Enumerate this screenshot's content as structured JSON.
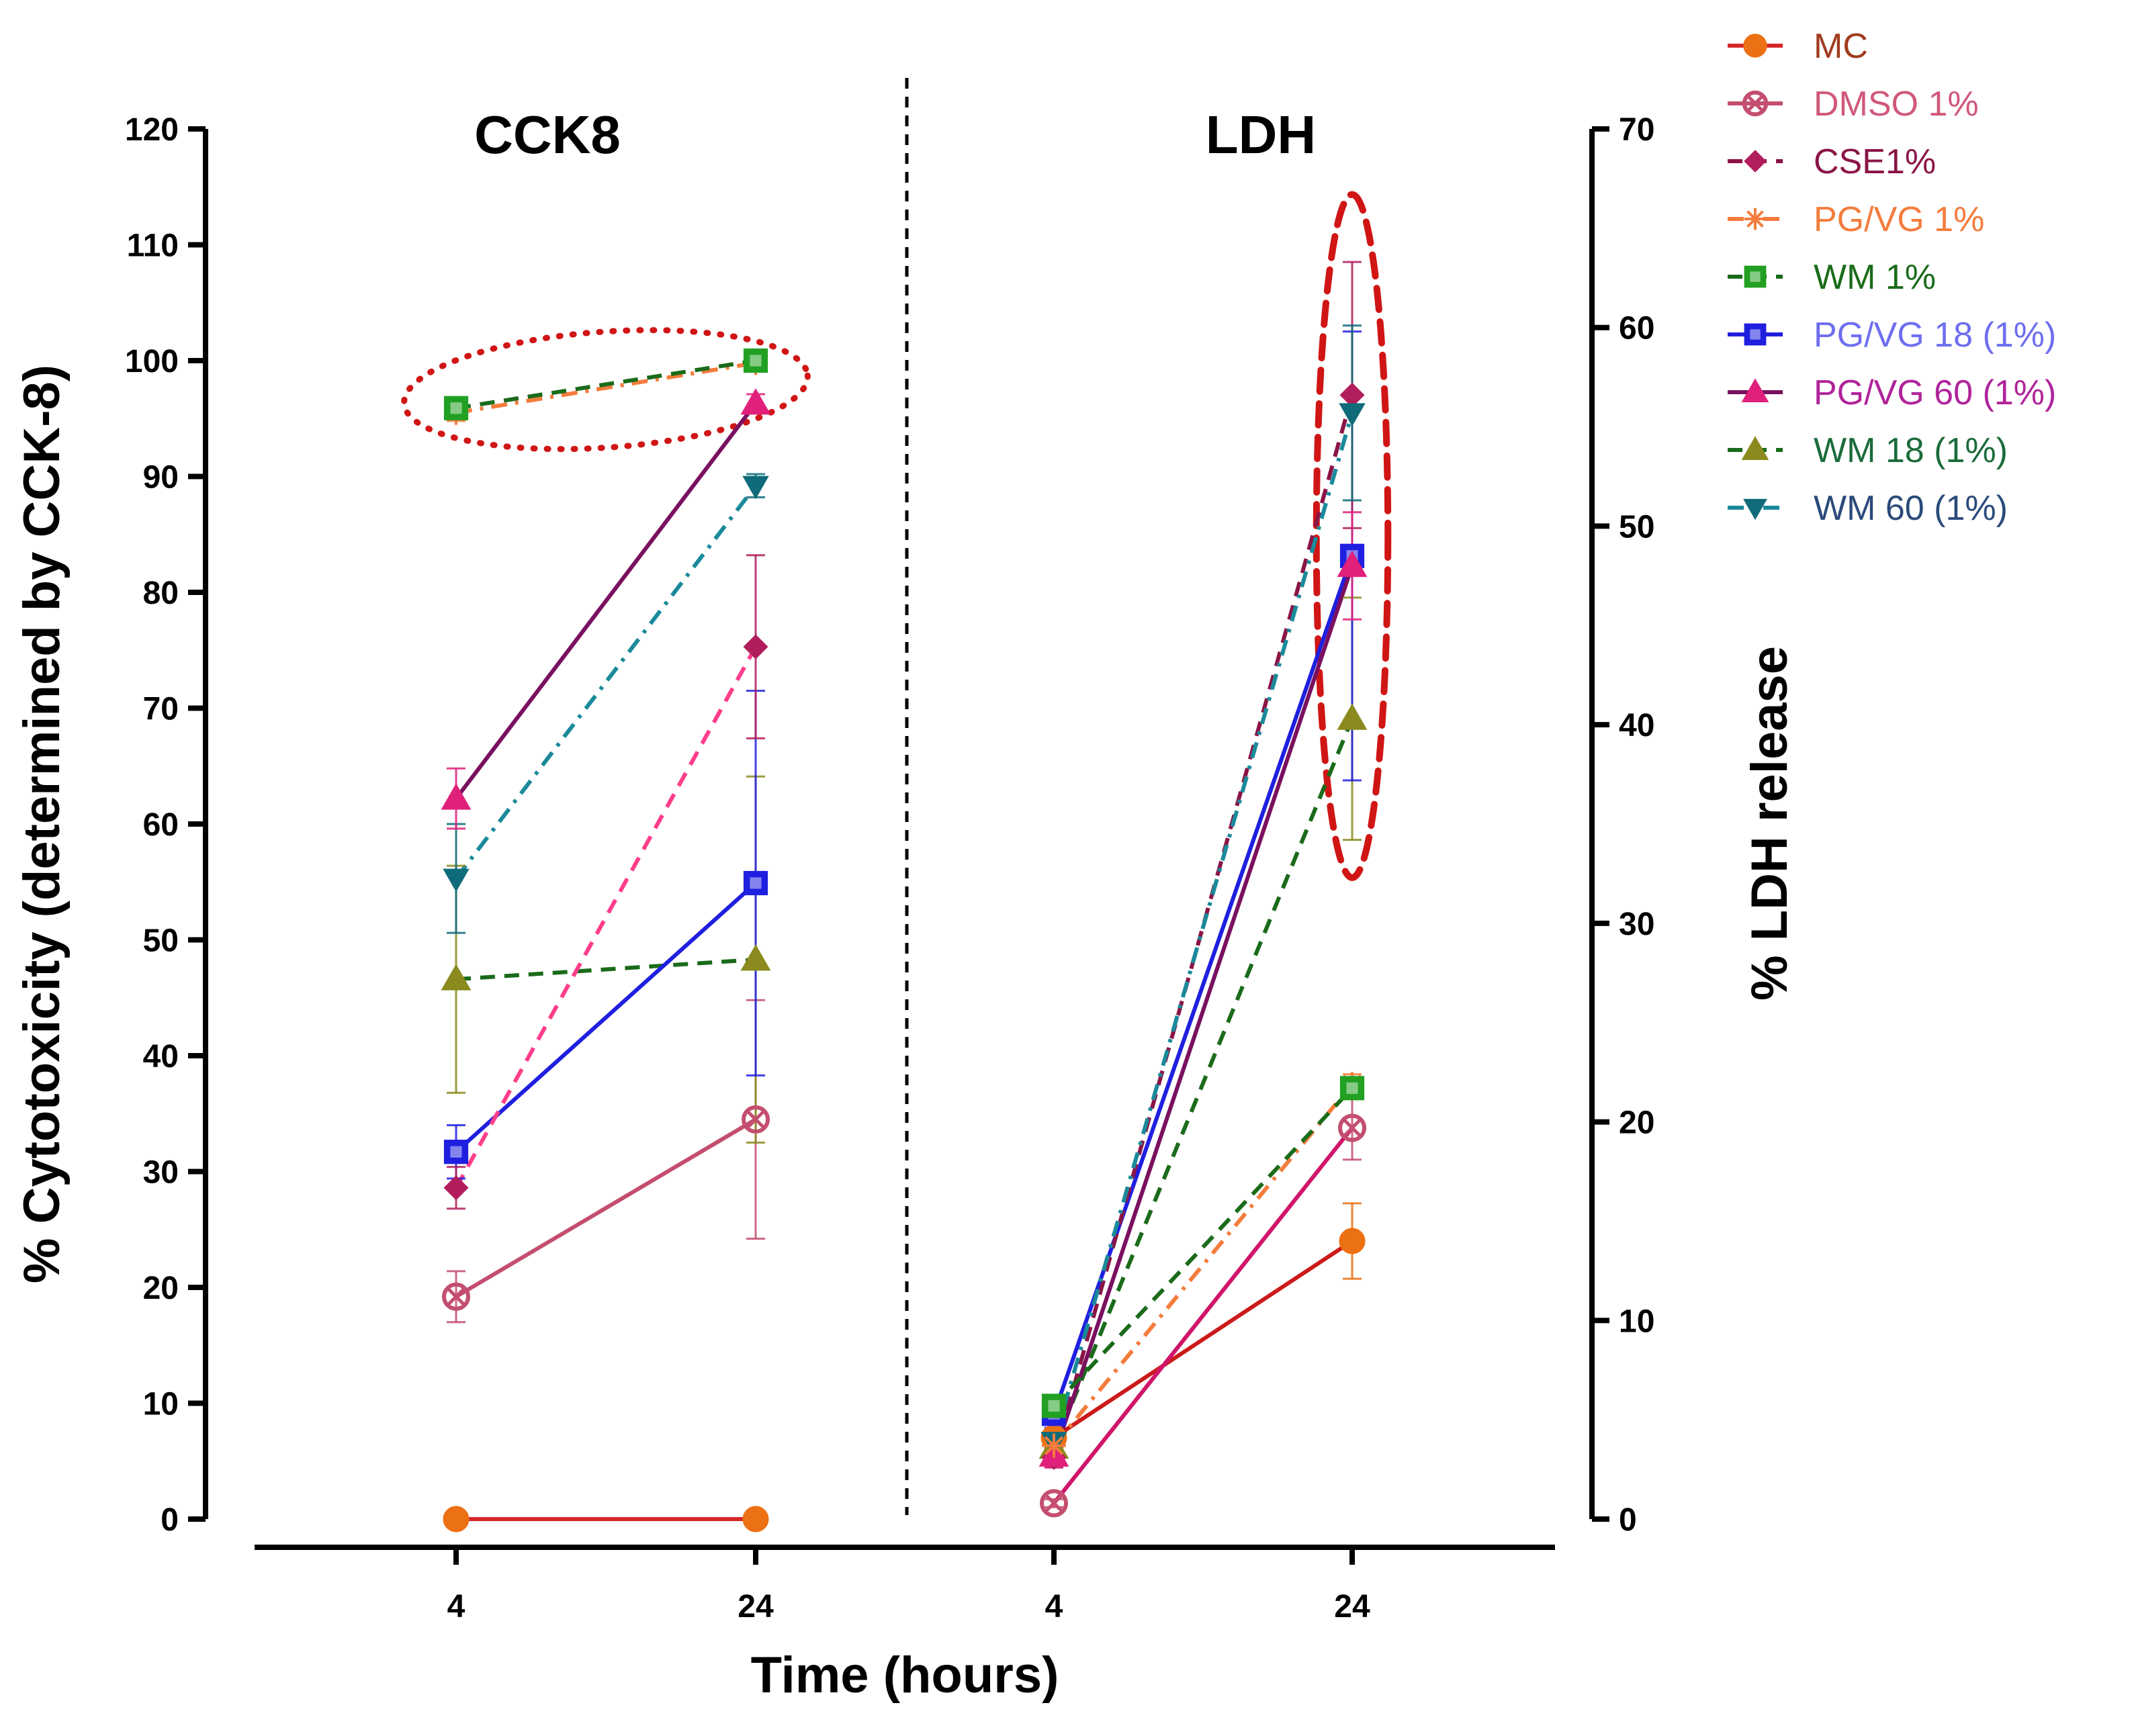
{
  "chart_data": {
    "type": "line",
    "x_label": "Time (hours)",
    "panels": [
      {
        "title": "CCK8",
        "ylabel": "% Cytotoxicity (determined by CCK-8)",
        "ylim": [
          0,
          120
        ],
        "yticks": [
          0,
          10,
          20,
          30,
          40,
          50,
          60,
          70,
          80,
          90,
          100,
          110,
          120
        ],
        "x": [
          "4",
          "24"
        ],
        "highlight": {
          "style": "dotted",
          "center_x": 14,
          "center_y": 97.5,
          "rx": 13.5,
          "ry": 5
        },
        "series": [
          {
            "name": "MC",
            "values": [
              0,
              0
            ],
            "err": [
              0,
              0
            ]
          },
          {
            "name": "DMSO 1%",
            "values": [
              19.2,
              34.5
            ],
            "err": [
              2.2,
              10.3
            ]
          },
          {
            "name": "CSE1%",
            "values": [
              28.6,
              75.3
            ],
            "err": [
              1.8,
              7.9
            ]
          },
          {
            "name": "PG/VG 1%",
            "values": [
              95.5,
              99.8
            ],
            "err": [
              0.7,
              0.4
            ]
          },
          {
            "name": "WM 1%",
            "values": [
              95.9,
              100.0
            ],
            "err": [
              0.5,
              0.3
            ]
          },
          {
            "name": "PG/VG 18 (1%)",
            "values": [
              31.7,
              54.9
            ],
            "err": [
              2.3,
              16.6
            ]
          },
          {
            "name": "PG/VG 60 (1%)",
            "values": [
              62.2,
              96.3
            ],
            "err": [
              2.6,
              0.8
            ]
          },
          {
            "name": "WM 18 (1%)",
            "values": [
              46.6,
              48.3
            ],
            "err": [
              9.8,
              15.8
            ]
          },
          {
            "name": "WM 60 (1%)",
            "values": [
              55.3,
              89.2
            ],
            "err": [
              4.7,
              1.0
            ]
          }
        ]
      },
      {
        "title": "LDH",
        "ylabel": "% LDH release",
        "ylim": [
          0,
          70
        ],
        "yticks": [
          0,
          10,
          20,
          30,
          40,
          50,
          60,
          70
        ],
        "x": [
          "4",
          "24"
        ],
        "highlight": {
          "style": "dashed",
          "center_x": 24,
          "center_y": 49.5,
          "rx": 2.4,
          "ry": 17.2
        },
        "series": [
          {
            "name": "MC",
            "values": [
              4.1,
              14.0
            ],
            "err": [
              0.5,
              1.9
            ]
          },
          {
            "name": "DMSO 1%",
            "values": [
              0.8,
              19.7
            ],
            "err": [
              0.2,
              1.6
            ]
          },
          {
            "name": "CSE1%",
            "values": [
              3.1,
              56.6
            ],
            "err": [
              0.5,
              6.7
            ]
          },
          {
            "name": "PG/VG 1%",
            "values": [
              3.7,
              21.9
            ],
            "err": [
              0.6,
              0.5
            ]
          },
          {
            "name": "WM 1%",
            "values": [
              5.7,
              21.7
            ],
            "err": [
              0.5,
              0.5
            ]
          },
          {
            "name": "PG/VG 18 (1%)",
            "values": [
              5.3,
              48.5
            ],
            "err": [
              0.7,
              11.3
            ]
          },
          {
            "name": "PG/VG 60 (1%)",
            "values": [
              3.2,
              48.0
            ],
            "err": [
              0.6,
              2.7
            ]
          },
          {
            "name": "WM 18 (1%)",
            "values": [
              3.6,
              40.3
            ],
            "err": [
              0.5,
              6.1
            ]
          },
          {
            "name": "WM 60 (1%)",
            "values": [
              3.9,
              55.7
            ],
            "err": [
              0.6,
              4.4
            ]
          }
        ]
      }
    ],
    "legend": {
      "position": "top-right",
      "entries": [
        {
          "name": "MC",
          "color": "#d62728",
          "marker_color": "#ec7014",
          "text_color": "#a03c1e",
          "dash": "solid",
          "marker": "circle"
        },
        {
          "name": "DMSO 1%",
          "color": "#c44e6f",
          "marker_color": "#c44e6f",
          "text_color": "#d0587a",
          "dash": "solid",
          "marker": "circle-cross"
        },
        {
          "name": "CSE1%",
          "color": "#8b1446",
          "marker_color": "#b21e5c",
          "text_color": "#8b1446",
          "dash": "dashed",
          "marker": "diamond"
        },
        {
          "name": "PG/VG 1%",
          "color": "#f47c3c",
          "marker_color": "#f47c3c",
          "text_color": "#f47c3c",
          "dash": "dashdot",
          "marker": "asterisk"
        },
        {
          "name": "WM 1%",
          "color": "#1a6b1a",
          "marker_color": "#22a022",
          "text_color": "#1a6b1a",
          "dash": "dashed",
          "marker": "square"
        },
        {
          "name": "PG/VG 18 (1%)",
          "color": "#1f1fe0",
          "marker_color": "#1f1fe0",
          "text_color": "#6e6ef0",
          "dash": "solid",
          "marker": "square"
        },
        {
          "name": "PG/VG 60 (1%)",
          "color": "#7a1060",
          "marker_color": "#e0207a",
          "text_color": "#b0239a",
          "dash": "solid",
          "marker": "triangle-up"
        },
        {
          "name": "WM 18 (1%)",
          "color": "#1a6b1a",
          "marker_color": "#8a8a1e",
          "text_color": "#1a6b3a",
          "dash": "dashed",
          "marker": "triangle-up"
        },
        {
          "name": "WM 60 (1%)",
          "color": "#1a8a9a",
          "marker_color": "#0f6b7a",
          "text_color": "#2a4a7a",
          "dash": "dashdot",
          "marker": "triangle-down"
        }
      ]
    },
    "overrides": {
      "CCK8": {
        "CSE1%": {
          "color": "#ff3d8b"
        }
      },
      "LDH": {
        "MC": {
          "color": "#cc1a1a"
        },
        "DMSO 1%": {
          "color": "#d0156a"
        }
      }
    },
    "highlight_color": "#d01515"
  }
}
